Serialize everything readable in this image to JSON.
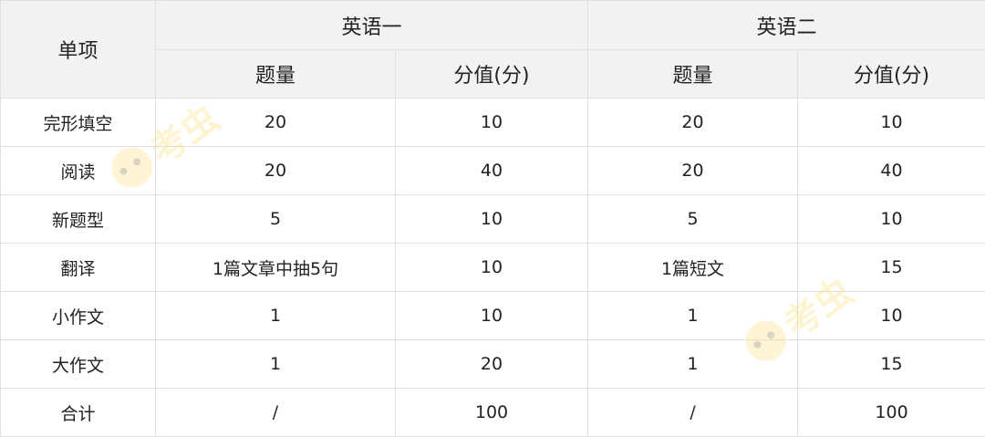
{
  "header": {
    "item_label": "单项",
    "groups": [
      "英语一",
      "英语二"
    ],
    "subcols": [
      "题量",
      "分值(分)",
      "题量",
      "分值(分)"
    ]
  },
  "rows": [
    {
      "item": "完形填空",
      "e1_count": "20",
      "e1_score": "10",
      "e2_count": "20",
      "e2_score": "10"
    },
    {
      "item": "阅读",
      "e1_count": "20",
      "e1_score": "40",
      "e2_count": "20",
      "e2_score": "40"
    },
    {
      "item": "新题型",
      "e1_count": "5",
      "e1_score": "10",
      "e2_count": "5",
      "e2_score": "10"
    },
    {
      "item": "翻译",
      "e1_count": "1篇文章中抽5句",
      "e1_score": "10",
      "e2_count": "1篇短文",
      "e2_score": "15"
    },
    {
      "item": "小作文",
      "e1_count": "1",
      "e1_score": "10",
      "e2_count": "1",
      "e2_score": "10"
    },
    {
      "item": "大作文",
      "e1_count": "1",
      "e1_score": "20",
      "e2_count": "1",
      "e2_score": "15"
    },
    {
      "item": "合计",
      "e1_count": "/",
      "e1_score": "100",
      "e2_count": "/",
      "e2_score": "100"
    }
  ],
  "watermark": "考虫",
  "colors": {
    "header_bg": "#f2f2f2",
    "border": "#e0e0e0",
    "watermark": "#ffd65a"
  }
}
